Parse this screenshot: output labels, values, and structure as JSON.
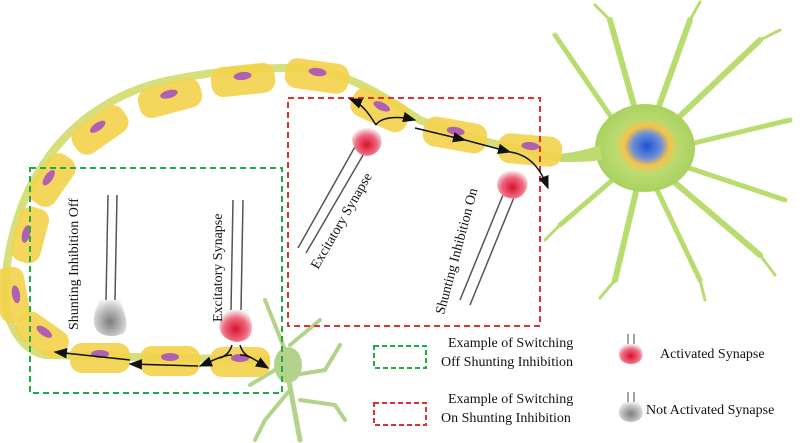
{
  "labels": {
    "shunting_off": "Shunting Inhibition Off",
    "excitatory_left": "Excitatory Synapse",
    "excitatory_right": "Excitatory Synapse",
    "shunting_on": "Shunting Inhibition On"
  },
  "legend": {
    "green_line1": "Example of Switching",
    "green_line2": "Off Shunting Inhibition",
    "red_line1": "Example of Switching",
    "red_line2": "On Shunting Inhibition",
    "activated": "Activated Synapse",
    "not_activated": "Not Activated Synapse"
  },
  "colors": {
    "green_box": "#22aa44",
    "red_box": "#e03030",
    "myelin": "#f3d24a",
    "axon": "#d7e07a",
    "node_purple": "#b060b0",
    "neuron_green": "#b5d96a",
    "nucleus_blue": "#2f63c8",
    "synapse_red": "#d81b3b",
    "synapse_gray": "#9a9a9a"
  }
}
